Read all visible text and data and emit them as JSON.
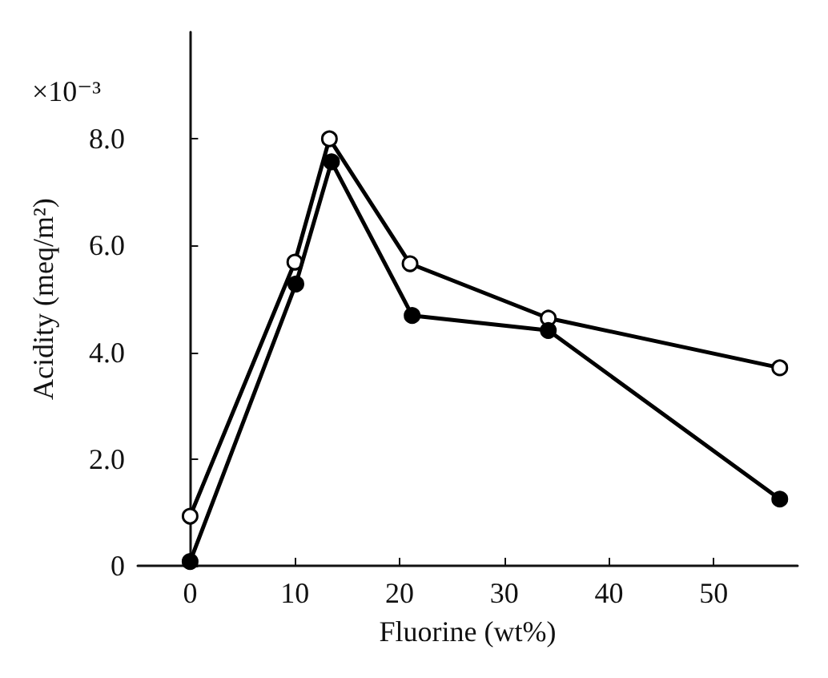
{
  "chart_data": {
    "type": "line",
    "xlabel": "Fluorine (wt%)",
    "ylabel": "Acidity (meq/m²)",
    "annotations": [
      "×10⁻³"
    ],
    "series": [
      {
        "color": "#000000",
        "colors": [
          "#ffffff",
          "#ffffff",
          "#ffffff",
          "#ffffff",
          "#ffffff",
          "#ffffff"
        ],
        "x": [
          0,
          10,
          13.3,
          21,
          34.2,
          56.3
        ],
        "values": [
          0.93,
          5.69,
          8.0,
          5.66,
          4.64,
          3.71
        ]
      },
      {
        "color": "#000000",
        "x": [
          0,
          10.1,
          13.5,
          21.2,
          34.2,
          56.3
        ],
        "values": [
          0.08,
          5.28,
          7.57,
          4.69,
          4.41,
          1.25
        ]
      }
    ],
    "xlim": [
      -5,
      58
    ],
    "xticks": [
      0,
      10,
      20,
      30,
      40,
      50
    ],
    "ylim": [
      0,
      10
    ],
    "yticks": [
      0,
      {
        "value": 2,
        "label": "2.0"
      },
      {
        "value": 4,
        "label": "4.0"
      },
      {
        "value": 6,
        "label": "6.0"
      },
      {
        "value": 8,
        "label": "8.0"
      }
    ],
    "marker": "circle",
    "line_style": "solid",
    "grid": false
  }
}
